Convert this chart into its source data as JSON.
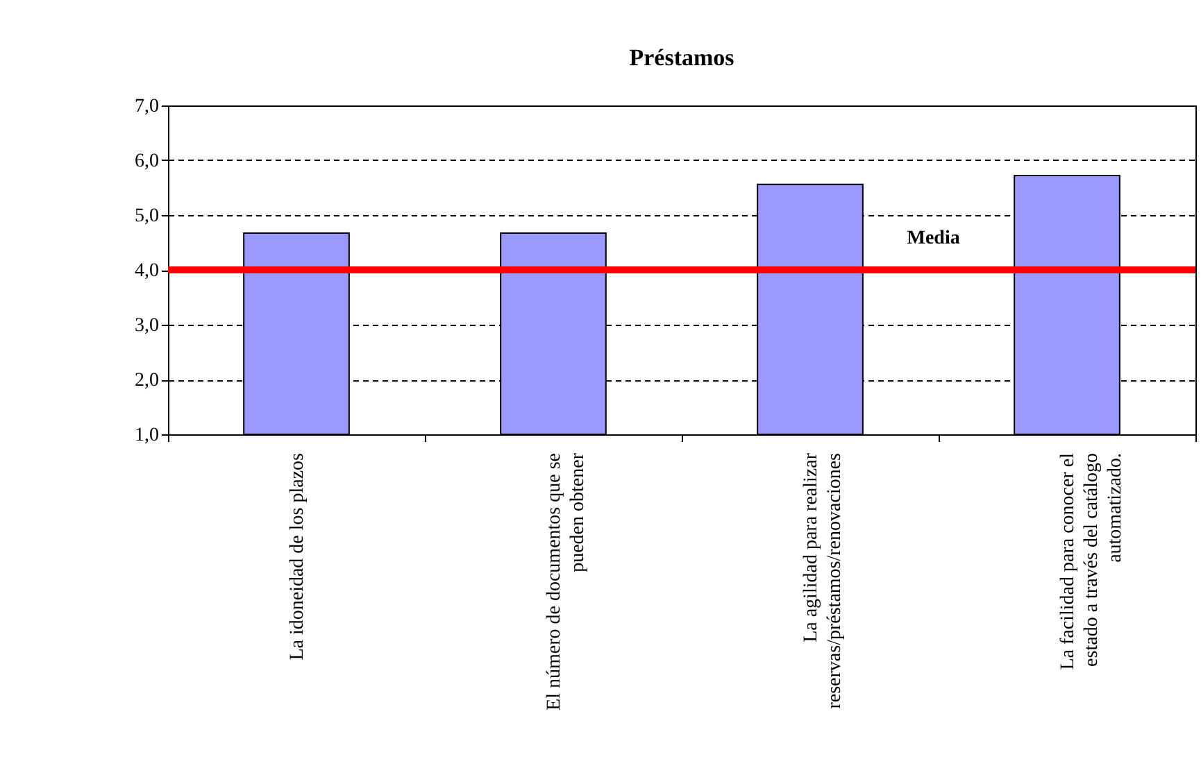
{
  "chart_data": {
    "type": "bar",
    "title": "Préstamos",
    "categories": [
      "La idoneidad de los plazos",
      "El número de documentos que se pueden obtener",
      "La agilidad para realizar reservas/préstamos/renovaciones",
      "La facilidad para conocer el estado a través del catálogo automatizado."
    ],
    "values": [
      4.67,
      4.67,
      5.56,
      5.72
    ],
    "color": "#9999ff",
    "ylim": [
      1,
      7
    ],
    "yticks": [
      {
        "value": 1,
        "label": "1,0"
      },
      {
        "value": 2,
        "label": "2,0"
      },
      {
        "value": 3,
        "label": "3,0"
      },
      {
        "value": 4,
        "label": "4,0"
      },
      {
        "value": 5,
        "label": "5,0"
      },
      {
        "value": 6,
        "label": "6,0"
      },
      {
        "value": 7,
        "label": "7,0"
      }
    ],
    "grid": "y",
    "ref_lines": [
      {
        "axis": "y",
        "value": 4.0,
        "label": "Media",
        "color": "#ff0000"
      }
    ]
  }
}
